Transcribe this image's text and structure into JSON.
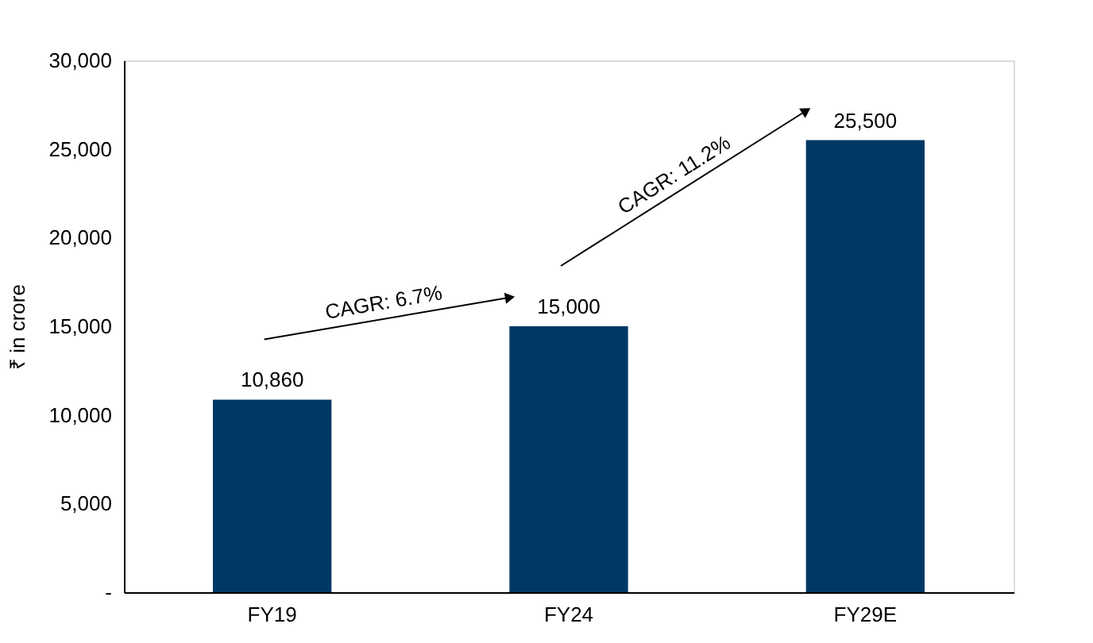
{
  "chart_data": {
    "type": "bar",
    "ylabel": "₹ in crore",
    "categories": [
      "FY19",
      "FY24",
      "FY29E"
    ],
    "series": [
      {
        "color": "#003865",
        "values": [
          10860,
          15000,
          25500
        ]
      }
    ],
    "value_labels": [
      "10,860",
      "15,000",
      "25,500"
    ],
    "ylim": [
      0,
      30000
    ],
    "yticks": [
      {
        "value": 0,
        "label": "-"
      },
      {
        "value": 5000,
        "label": "5,000"
      },
      {
        "value": 10000,
        "label": "10,000"
      },
      {
        "value": 15000,
        "label": "15,000"
      },
      {
        "value": 20000,
        "label": "20,000"
      },
      {
        "value": 25000,
        "label": "25,000"
      },
      {
        "value": 30000,
        "label": "30,000"
      }
    ],
    "annotations": [
      "CAGR: 6.7%",
      "CAGR: 11.2%"
    ],
    "grid": false
  }
}
